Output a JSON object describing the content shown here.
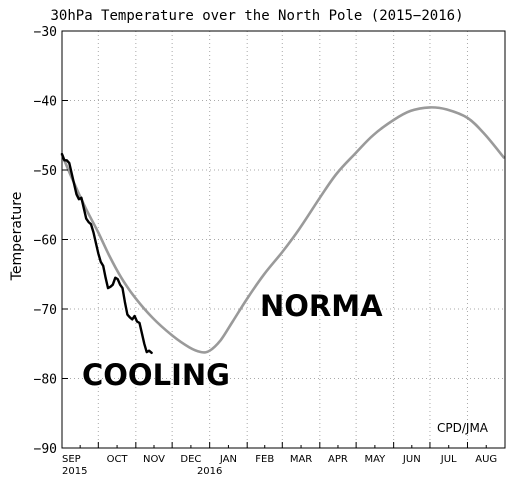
{
  "chart_data": {
    "type": "line",
    "title": "30hPa Temperature over the North Pole (2015−2016)",
    "ylabel": "Temperature",
    "xlabel": "",
    "ylim": [
      -90,
      -30
    ],
    "yticks": [
      -90,
      -80,
      -70,
      -60,
      -50,
      -40,
      -30
    ],
    "x_start": "2015-09-01",
    "x_end": "2016-08-31",
    "xticks": [
      {
        "date": "2015-09-01",
        "label": "SEP",
        "year": "2015"
      },
      {
        "date": "2015-10-01",
        "label": "OCT",
        "year": ""
      },
      {
        "date": "2015-11-01",
        "label": "NOV",
        "year": ""
      },
      {
        "date": "2015-12-01",
        "label": "DEC",
        "year": ""
      },
      {
        "date": "2016-01-01",
        "label": "JAN",
        "year": "2016"
      },
      {
        "date": "2016-02-01",
        "label": "FEB",
        "year": ""
      },
      {
        "date": "2016-03-01",
        "label": "MAR",
        "year": ""
      },
      {
        "date": "2016-04-01",
        "label": "APR",
        "year": ""
      },
      {
        "date": "2016-05-01",
        "label": "MAY",
        "year": ""
      },
      {
        "date": "2016-06-01",
        "label": "JUN",
        "year": ""
      },
      {
        "date": "2016-07-01",
        "label": "JUL",
        "year": ""
      },
      {
        "date": "2016-08-01",
        "label": "AUG",
        "year": ""
      }
    ],
    "grid": true,
    "series": [
      {
        "color": "#9a9a9a",
        "x": [
          "2015-09-01",
          "2015-09-10",
          "2015-09-20",
          "2015-10-01",
          "2015-10-10",
          "2015-10-20",
          "2015-11-01",
          "2015-11-15",
          "2015-12-01",
          "2015-12-15",
          "2015-12-25",
          "2016-01-01",
          "2016-01-10",
          "2016-01-20",
          "2016-02-01",
          "2016-02-15",
          "2016-03-01",
          "2016-03-15",
          "2016-04-01",
          "2016-04-15",
          "2016-05-01",
          "2016-05-15",
          "2016-06-01",
          "2016-06-15",
          "2016-07-01",
          "2016-07-15",
          "2016-08-01",
          "2016-08-15",
          "2016-08-31"
        ],
        "y": [
          -47.8,
          -51.5,
          -55.3,
          -59.0,
          -62.3,
          -65.5,
          -68.5,
          -71.3,
          -73.8,
          -75.5,
          -76.2,
          -76.0,
          -74.5,
          -71.8,
          -68.5,
          -65.0,
          -61.8,
          -58.5,
          -54.0,
          -50.5,
          -47.5,
          -45.0,
          -42.8,
          -41.5,
          -41.0,
          -41.3,
          -42.5,
          -44.8,
          -48.2
        ]
      },
      {
        "color": "#000000",
        "x": [
          "2015-09-01",
          "2015-09-03",
          "2015-09-05",
          "2015-09-07",
          "2015-09-09",
          "2015-09-11",
          "2015-09-13",
          "2015-09-15",
          "2015-09-17",
          "2015-09-19",
          "2015-09-21",
          "2015-09-23",
          "2015-09-25",
          "2015-09-27",
          "2015-09-29",
          "2015-10-01",
          "2015-10-03",
          "2015-10-05",
          "2015-10-07",
          "2015-10-09",
          "2015-10-11",
          "2015-10-13",
          "2015-10-15",
          "2015-10-17",
          "2015-10-19",
          "2015-10-21",
          "2015-10-23",
          "2015-10-25",
          "2015-10-27",
          "2015-10-29",
          "2015-10-31",
          "2015-11-02",
          "2015-11-04",
          "2015-11-06",
          "2015-11-08",
          "2015-11-10",
          "2015-11-12",
          "2015-11-14"
        ],
        "y": [
          -47.7,
          -48.6,
          -48.6,
          -49.0,
          -50.5,
          -52.0,
          -53.5,
          -54.2,
          -54.0,
          -55.5,
          -57.0,
          -57.5,
          -57.8,
          -59.0,
          -60.5,
          -62.0,
          -63.2,
          -63.8,
          -65.5,
          -67.0,
          -66.8,
          -66.5,
          -65.5,
          -65.7,
          -66.5,
          -67.0,
          -69.0,
          -70.8,
          -71.2,
          -71.5,
          -71.0,
          -71.8,
          -72.0,
          -73.5,
          -75.0,
          -76.2,
          -76.0,
          -76.3
        ]
      }
    ]
  },
  "annotations": {
    "cooling": "COOLING",
    "normal": "NORMA",
    "credit": "CPD/JMA"
  }
}
